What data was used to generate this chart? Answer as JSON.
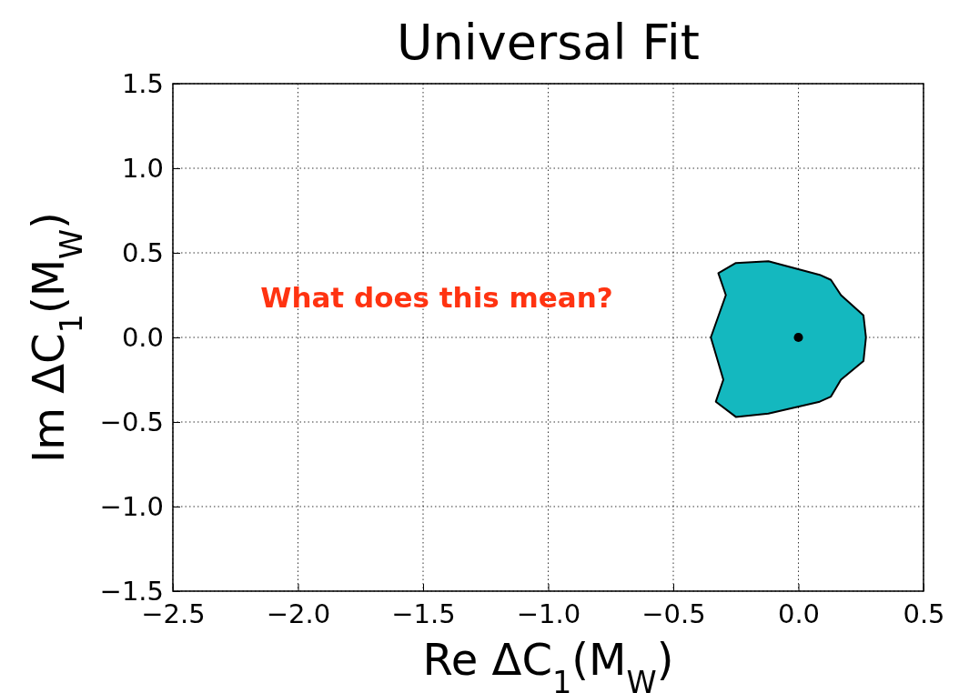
{
  "chart_data": {
    "type": "area",
    "title": "Universal Fit",
    "xlabel": "Re ΔC$_{1}$(M$_{W}$)",
    "ylabel": "Im ΔC$_{1}$(M$_{W}$)",
    "xlim": [
      -2.5,
      0.5
    ],
    "xticks": [
      {
        "value": -2.5,
        "label": "−2.5"
      },
      {
        "value": -2.0,
        "label": "−2.0"
      },
      {
        "value": -1.5,
        "label": "−1.5"
      },
      {
        "value": -1.0,
        "label": "−1.0"
      },
      {
        "value": -0.5,
        "label": "−0.5"
      },
      {
        "value": 0,
        "label": "0.0"
      },
      {
        "value": 0.5,
        "label": "0.5"
      }
    ],
    "ylim": [
      -1.5,
      1.5
    ],
    "yticks": [
      {
        "value": -1.5,
        "label": "−1.5"
      },
      {
        "value": -1.0,
        "label": "−1.0"
      },
      {
        "value": -0.5,
        "label": "−0.5"
      },
      {
        "value": 0,
        "label": "0.0"
      },
      {
        "value": 0.5,
        "label": "0.5"
      },
      {
        "value": 1.0,
        "label": "1.0"
      },
      {
        "value": 1.5,
        "label": "1.5"
      }
    ],
    "grid": true,
    "series": [
      {
        "color": "#14b8bf",
        "x": [
          -0.32,
          -0.25,
          -0.12,
          0.085,
          0.13,
          0.17,
          0.26,
          0.27,
          0.26,
          0.17,
          0.13,
          0.085,
          -0.12,
          -0.25,
          -0.33,
          -0.3,
          -0.35,
          -0.29
        ],
        "values": [
          0.38,
          0.44,
          0.45,
          0.37,
          0.34,
          0.25,
          0.13,
          0.0,
          -0.14,
          -0.25,
          -0.35,
          -0.38,
          -0.45,
          -0.47,
          -0.38,
          -0.25,
          0.0,
          0.25
        ]
      },
      {
        "type": "scatter",
        "color": "#000000",
        "marker": "circle",
        "x": [
          0
        ],
        "values": [
          0
        ]
      }
    ],
    "annotations": [
      "What does this mean?"
    ]
  }
}
